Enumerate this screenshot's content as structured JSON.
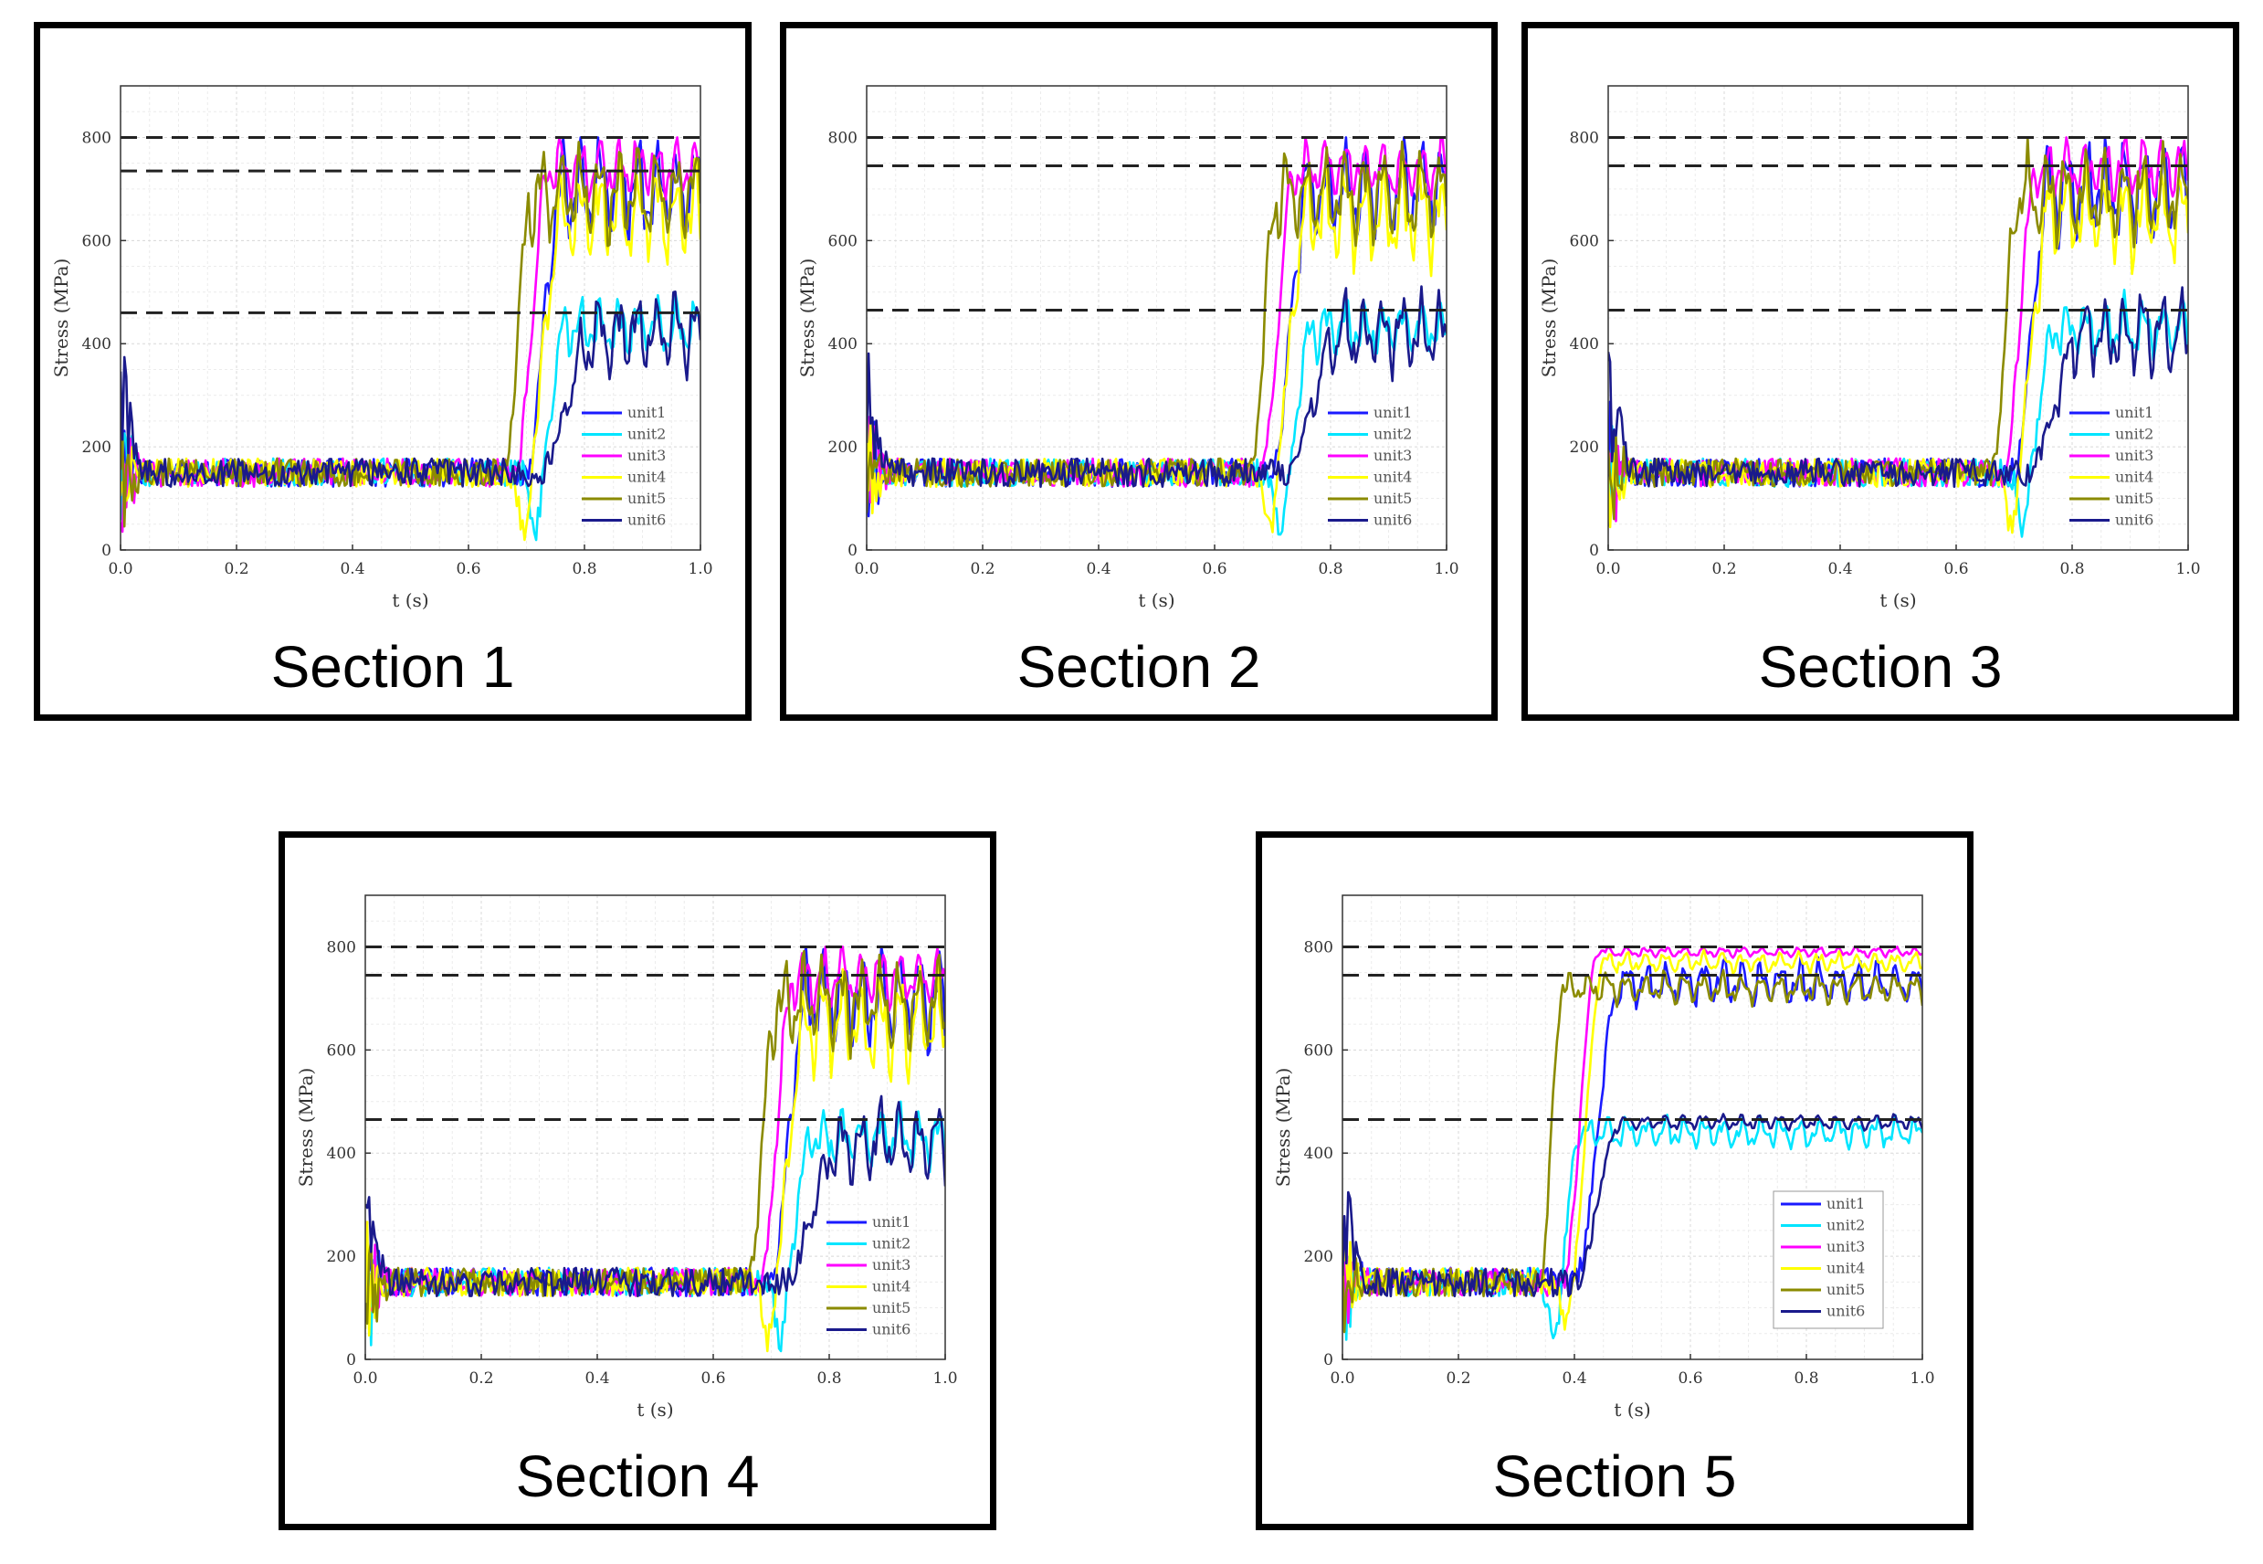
{
  "chart_data": [
    {
      "type": "line",
      "title": "Section 1",
      "xlabel": "t (s)",
      "ylabel": "Stress (MPa)",
      "xlim": [
        0,
        1.0
      ],
      "ylim": [
        0,
        900
      ],
      "x_ticks": [
        "0.0",
        "0.2",
        "0.4",
        "0.6",
        "0.8",
        "1.0"
      ],
      "y_ticks": [
        "0",
        "200",
        "400",
        "600",
        "800"
      ],
      "reference_lines": [
        800,
        735,
        460
      ],
      "transition_time": 0.66,
      "legend": [
        "unit1",
        "unit2",
        "unit3",
        "unit4",
        "unit5",
        "unit6"
      ],
      "series": [
        {
          "name": "unit1",
          "color": "#1a1aff",
          "baseline": 150,
          "final": 700,
          "onset": 0.7,
          "rise": 0.06,
          "osc": 100,
          "dip": 0
        },
        {
          "name": "unit2",
          "color": "#00e5ff",
          "baseline": 150,
          "final": 430,
          "onset": 0.72,
          "rise": 0.05,
          "osc": 60,
          "dip": 110
        },
        {
          "name": "unit3",
          "color": "#ff00ff",
          "baseline": 150,
          "final": 740,
          "onset": 0.68,
          "rise": 0.06,
          "osc": 60,
          "dip": 0
        },
        {
          "name": "unit4",
          "color": "#ffff00",
          "baseline": 150,
          "final": 650,
          "onset": 0.7,
          "rise": 0.06,
          "osc": 100,
          "dip": 110
        },
        {
          "name": "unit5",
          "color": "#8b8b00",
          "baseline": 150,
          "final": 690,
          "onset": 0.66,
          "rise": 0.05,
          "osc": 90,
          "dip": 0
        },
        {
          "name": "unit6",
          "color": "#1a1a8c",
          "baseline": 150,
          "final": 420,
          "onset": 0.72,
          "rise": 0.1,
          "osc": 80,
          "dip": 0
        }
      ]
    },
    {
      "type": "line",
      "title": "Section 2",
      "xlabel": "t (s)",
      "ylabel": "Stress (MPa)",
      "xlim": [
        0,
        1.0
      ],
      "ylim": [
        0,
        900
      ],
      "x_ticks": [
        "0.0",
        "0.2",
        "0.4",
        "0.6",
        "0.8",
        "1.0"
      ],
      "y_ticks": [
        "0",
        "200",
        "400",
        "600",
        "800"
      ],
      "reference_lines": [
        800,
        745,
        465
      ],
      "transition_time": 0.66,
      "legend": [
        "unit1",
        "unit2",
        "unit3",
        "unit4",
        "unit5",
        "unit6"
      ],
      "series": [
        {
          "name": "unit1",
          "color": "#1a1aff",
          "baseline": 150,
          "final": 700,
          "onset": 0.7,
          "rise": 0.06,
          "osc": 100,
          "dip": 0
        },
        {
          "name": "unit2",
          "color": "#00e5ff",
          "baseline": 150,
          "final": 430,
          "onset": 0.72,
          "rise": 0.05,
          "osc": 60,
          "dip": 110
        },
        {
          "name": "unit3",
          "color": "#ff00ff",
          "baseline": 150,
          "final": 740,
          "onset": 0.68,
          "rise": 0.06,
          "osc": 60,
          "dip": 0
        },
        {
          "name": "unit4",
          "color": "#ffff00",
          "baseline": 150,
          "final": 650,
          "onset": 0.7,
          "rise": 0.06,
          "osc": 100,
          "dip": 110
        },
        {
          "name": "unit5",
          "color": "#8b8b00",
          "baseline": 150,
          "final": 690,
          "onset": 0.66,
          "rise": 0.05,
          "osc": 90,
          "dip": 0
        },
        {
          "name": "unit6",
          "color": "#1a1a8c",
          "baseline": 150,
          "final": 420,
          "onset": 0.72,
          "rise": 0.1,
          "osc": 80,
          "dip": 0
        }
      ]
    },
    {
      "type": "line",
      "title": "Section 3",
      "xlabel": "t (s)",
      "ylabel": "Stress (MPa)",
      "xlim": [
        0,
        1.0
      ],
      "ylim": [
        0,
        900
      ],
      "x_ticks": [
        "0.0",
        "0.2",
        "0.4",
        "0.6",
        "0.8",
        "1.0"
      ],
      "y_ticks": [
        "0",
        "200",
        "400",
        "600",
        "800"
      ],
      "reference_lines": [
        800,
        745,
        465
      ],
      "transition_time": 0.66,
      "legend": [
        "unit1",
        "unit2",
        "unit3",
        "unit4",
        "unit5",
        "unit6"
      ],
      "series": [
        {
          "name": "unit1",
          "color": "#1a1aff",
          "baseline": 150,
          "final": 700,
          "onset": 0.7,
          "rise": 0.06,
          "osc": 100,
          "dip": 0
        },
        {
          "name": "unit2",
          "color": "#00e5ff",
          "baseline": 150,
          "final": 430,
          "onset": 0.72,
          "rise": 0.05,
          "osc": 60,
          "dip": 110
        },
        {
          "name": "unit3",
          "color": "#ff00ff",
          "baseline": 150,
          "final": 740,
          "onset": 0.68,
          "rise": 0.06,
          "osc": 60,
          "dip": 0
        },
        {
          "name": "unit4",
          "color": "#ffff00",
          "baseline": 150,
          "final": 650,
          "onset": 0.7,
          "rise": 0.06,
          "osc": 100,
          "dip": 110
        },
        {
          "name": "unit5",
          "color": "#8b8b00",
          "baseline": 150,
          "final": 690,
          "onset": 0.66,
          "rise": 0.05,
          "osc": 90,
          "dip": 0
        },
        {
          "name": "unit6",
          "color": "#1a1a8c",
          "baseline": 150,
          "final": 420,
          "onset": 0.72,
          "rise": 0.1,
          "osc": 80,
          "dip": 0
        }
      ]
    },
    {
      "type": "line",
      "title": "Section 4",
      "xlabel": "t (s)",
      "ylabel": "Stress (MPa)",
      "xlim": [
        0,
        1.0
      ],
      "ylim": [
        0,
        900
      ],
      "x_ticks": [
        "0.0",
        "0.2",
        "0.4",
        "0.6",
        "0.8",
        "1.0"
      ],
      "y_ticks": [
        "0",
        "200",
        "400",
        "600",
        "800"
      ],
      "reference_lines": [
        800,
        745,
        465
      ],
      "transition_time": 0.66,
      "legend": [
        "unit1",
        "unit2",
        "unit3",
        "unit4",
        "unit5",
        "unit6"
      ],
      "series": [
        {
          "name": "unit1",
          "color": "#1a1aff",
          "baseline": 150,
          "final": 700,
          "onset": 0.7,
          "rise": 0.06,
          "osc": 100,
          "dip": 0
        },
        {
          "name": "unit2",
          "color": "#00e5ff",
          "baseline": 150,
          "final": 430,
          "onset": 0.72,
          "rise": 0.05,
          "osc": 60,
          "dip": 110
        },
        {
          "name": "unit3",
          "color": "#ff00ff",
          "baseline": 150,
          "final": 740,
          "onset": 0.68,
          "rise": 0.06,
          "osc": 60,
          "dip": 0
        },
        {
          "name": "unit4",
          "color": "#ffff00",
          "baseline": 150,
          "final": 650,
          "onset": 0.7,
          "rise": 0.06,
          "osc": 100,
          "dip": 110
        },
        {
          "name": "unit5",
          "color": "#8b8b00",
          "baseline": 150,
          "final": 690,
          "onset": 0.66,
          "rise": 0.05,
          "osc": 90,
          "dip": 0
        },
        {
          "name": "unit6",
          "color": "#1a1a8c",
          "baseline": 150,
          "final": 420,
          "onset": 0.72,
          "rise": 0.1,
          "osc": 80,
          "dip": 0
        }
      ]
    },
    {
      "type": "line",
      "title": "Section 5",
      "xlabel": "t (s)",
      "ylabel": "Stress (MPa)",
      "xlim": [
        0,
        1.0
      ],
      "ylim": [
        0,
        900
      ],
      "x_ticks": [
        "0.0",
        "0.2",
        "0.4",
        "0.6",
        "0.8",
        "1.0"
      ],
      "y_ticks": [
        "0",
        "200",
        "400",
        "600",
        "800"
      ],
      "reference_lines": [
        800,
        745,
        465
      ],
      "transition_time": 0.36,
      "legend": [
        "unit1",
        "unit2",
        "unit3",
        "unit4",
        "unit5",
        "unit6"
      ],
      "series": [
        {
          "name": "unit1",
          "color": "#1a1aff",
          "baseline": 150,
          "final": 730,
          "onset": 0.4,
          "rise": 0.08,
          "osc": 45,
          "dip": 0
        },
        {
          "name": "unit2",
          "color": "#00e5ff",
          "baseline": 150,
          "final": 440,
          "onset": 0.37,
          "rise": 0.04,
          "osc": 30,
          "dip": 110
        },
        {
          "name": "unit3",
          "color": "#ff00ff",
          "baseline": 150,
          "final": 790,
          "onset": 0.38,
          "rise": 0.06,
          "osc": 10,
          "dip": 0
        },
        {
          "name": "unit4",
          "color": "#ffff00",
          "baseline": 150,
          "final": 770,
          "onset": 0.39,
          "rise": 0.06,
          "osc": 20,
          "dip": 90
        },
        {
          "name": "unit5",
          "color": "#8b8b00",
          "baseline": 150,
          "final": 720,
          "onset": 0.34,
          "rise": 0.04,
          "osc": 30,
          "dip": 0
        },
        {
          "name": "unit6",
          "color": "#1a1a8c",
          "baseline": 150,
          "final": 460,
          "onset": 0.4,
          "rise": 0.08,
          "osc": 15,
          "dip": 0
        }
      ]
    }
  ]
}
